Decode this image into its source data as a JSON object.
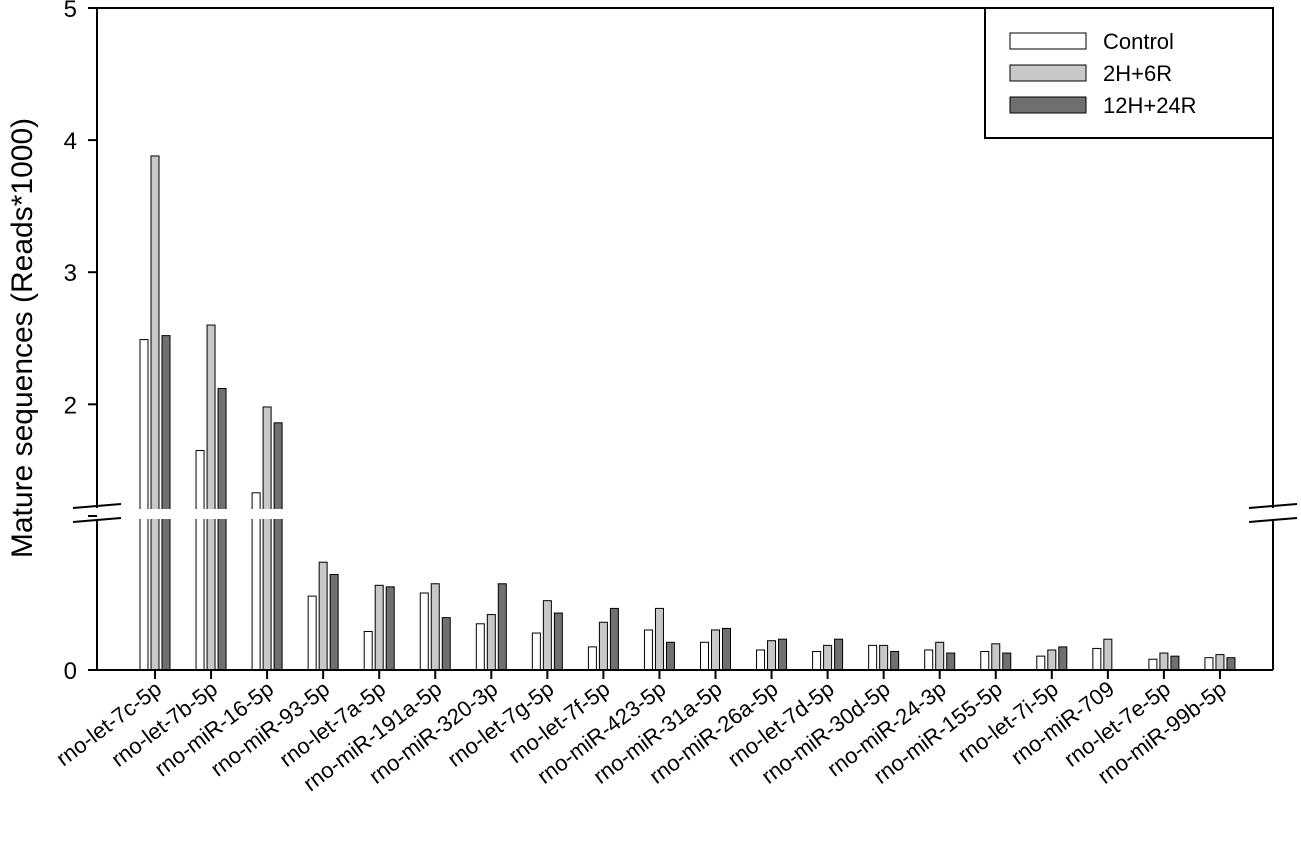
{
  "chart_data": {
    "type": "bar",
    "title": "",
    "xlabel": "",
    "ylabel": "Mature sequences (Reads*1000)",
    "y_axis_break": true,
    "ylim": [
      0,
      5
    ],
    "yticks": [
      "0",
      "2",
      "3",
      "4",
      "5"
    ],
    "legend_position": "top-right",
    "categories": [
      "rno-let-7c-5p",
      "rno-let-7b-5p",
      "rno-miR-16-5p",
      "rno-miR-93-5p",
      "rno-let-7a-5p",
      "rno-miR-191a-5p",
      "rno-miR-320-3p",
      "rno-let-7g-5p",
      "rno-let-7f-5p",
      "rno-miR-423-5p",
      "rno-miR-31a-5p",
      "rno-miR-26a-5p",
      "rno-let-7d-5p",
      "rno-miR-30d-5p",
      "rno-miR-24-3p",
      "rno-miR-155-5p",
      "rno-let-7i-5p",
      "rno-miR-709",
      "rno-let-7e-5p",
      "rno-miR-99b-5p"
    ],
    "series": [
      {
        "name": "Control",
        "color": "#ffffff",
        "values": [
          2.49,
          1.65,
          1.33,
          0.48,
          0.25,
          0.5,
          0.3,
          0.24,
          0.15,
          0.26,
          0.18,
          0.13,
          0.12,
          0.16,
          0.13,
          0.12,
          0.09,
          0.14,
          0.07,
          0.08
        ]
      },
      {
        "name": "2H+6R",
        "color": "#c8c8c8",
        "values": [
          3.88,
          2.6,
          1.98,
          0.7,
          0.55,
          0.56,
          0.36,
          0.45,
          0.31,
          0.4,
          0.26,
          0.19,
          0.16,
          0.16,
          0.18,
          0.17,
          0.13,
          0.2,
          0.11,
          0.1
        ]
      },
      {
        "name": "12H+24R",
        "color": "#707070",
        "values": [
          2.52,
          2.12,
          1.86,
          0.62,
          0.54,
          0.34,
          0.56,
          0.37,
          0.4,
          0.18,
          0.27,
          0.2,
          0.2,
          0.12,
          0.11,
          0.11,
          0.15,
          0,
          0.09,
          0.08
        ]
      }
    ]
  }
}
